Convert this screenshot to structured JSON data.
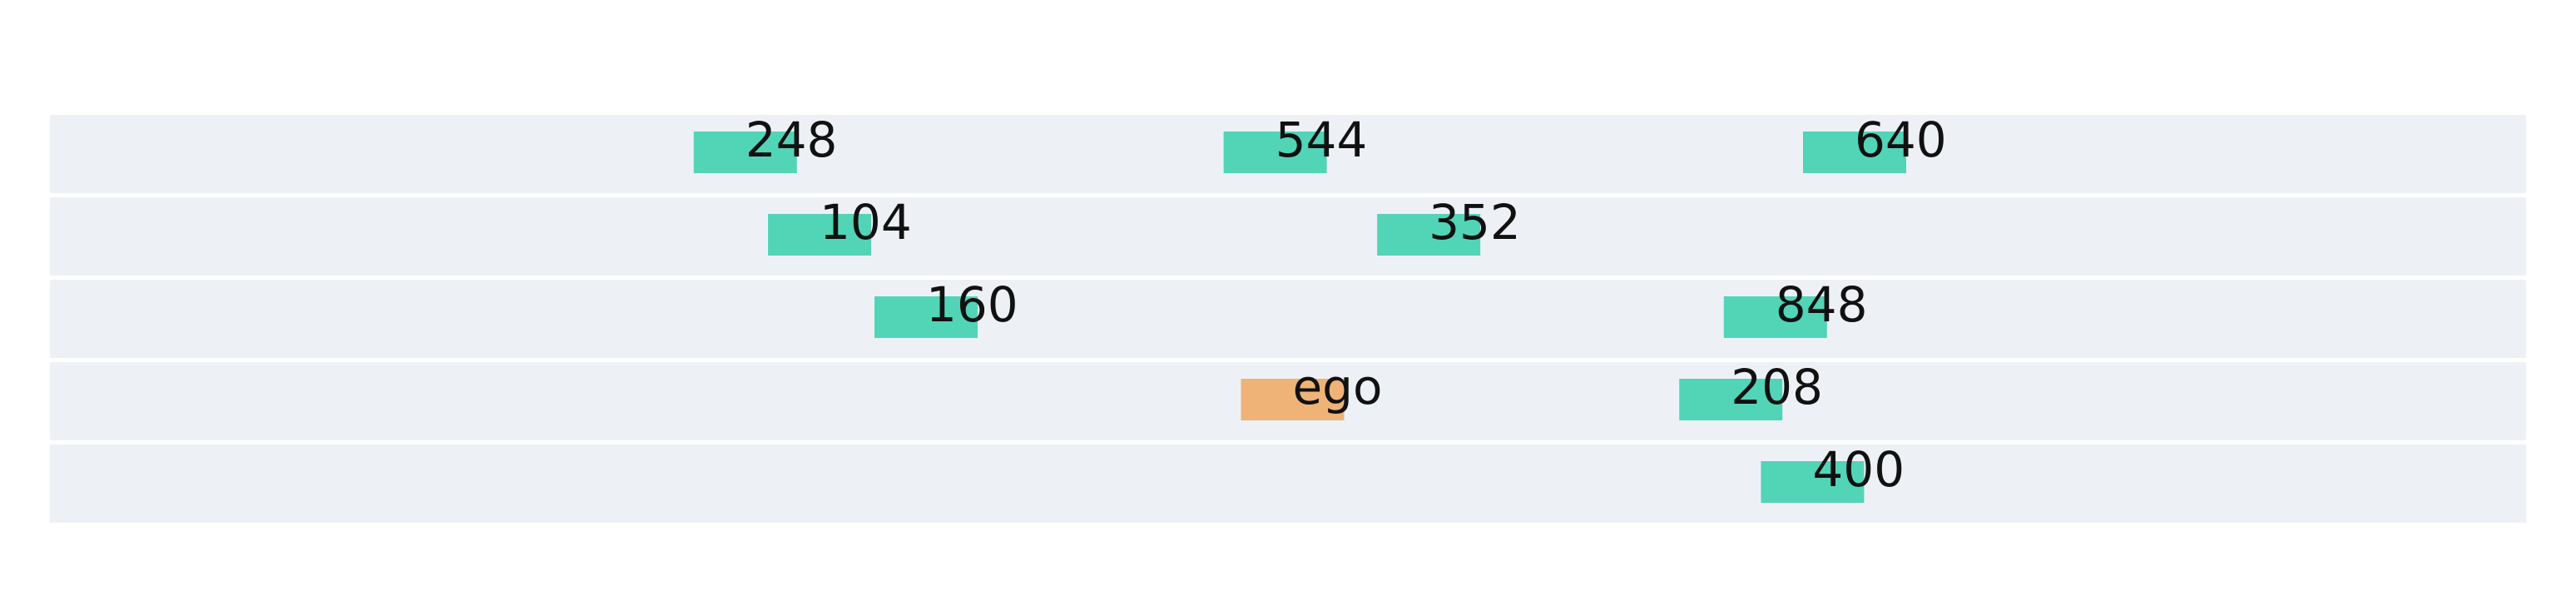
{
  "diagram": {
    "type": "lane-occupancy",
    "lane_count": 5,
    "colors": {
      "lane_fill": "#edf1f6",
      "lane_gap": "#ffffff",
      "vehicle": "#52d4b7",
      "ego": "#efb277",
      "text": "#111111"
    },
    "x_range": [
      0,
      1000
    ],
    "vehicles": [
      {
        "id": "v248",
        "label": "248",
        "lane": 0,
        "x": 260,
        "kind": "other"
      },
      {
        "id": "v544",
        "label": "544",
        "lane": 0,
        "x": 474,
        "kind": "other"
      },
      {
        "id": "v640",
        "label": "640",
        "lane": 0,
        "x": 708,
        "kind": "other"
      },
      {
        "id": "v104",
        "label": "104",
        "lane": 1,
        "x": 290,
        "kind": "other"
      },
      {
        "id": "v352",
        "label": "352",
        "lane": 1,
        "x": 536,
        "kind": "other"
      },
      {
        "id": "v160",
        "label": "160",
        "lane": 2,
        "x": 333,
        "kind": "other"
      },
      {
        "id": "v848",
        "label": "848",
        "lane": 2,
        "x": 676,
        "kind": "other"
      },
      {
        "id": "ego",
        "label": "ego",
        "lane": 3,
        "x": 481,
        "kind": "ego"
      },
      {
        "id": "v208",
        "label": "208",
        "lane": 3,
        "x": 658,
        "kind": "other"
      },
      {
        "id": "v400",
        "label": "400",
        "lane": 4,
        "x": 691,
        "kind": "other"
      }
    ]
  }
}
